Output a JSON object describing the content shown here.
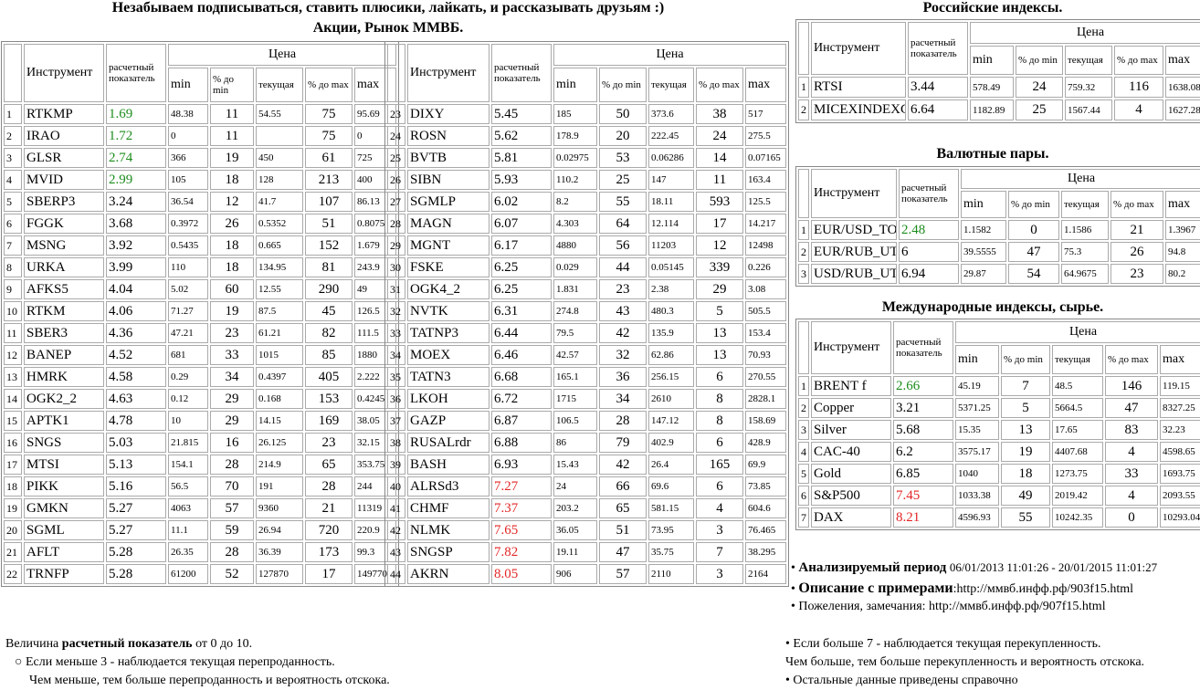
{
  "header": {
    "title": "Незабываем подписываться, ставить плюсики, лайкать, и рассказывать друзьям :)",
    "subtitle": "Акции, Рынок ММВБ."
  },
  "columns": {
    "instrument": "Инструмент",
    "calc": "расчетный показатель",
    "price": "Цена",
    "min": "min",
    "pmin": "% до min",
    "cur": "текущая",
    "pmax": "% до max",
    "max": "max"
  },
  "stocks_left": {
    "rows": [
      [
        "1",
        "RTKMP",
        1.69,
        48.38,
        11,
        54.55,
        75,
        95.69
      ],
      [
        "2",
        "IRAO",
        1.72,
        0,
        11,
        null,
        75,
        0
      ],
      [
        "3",
        "GLSR",
        2.74,
        366,
        19,
        450,
        61,
        725
      ],
      [
        "4",
        "MVID",
        2.99,
        105,
        18,
        128,
        213,
        400
      ],
      [
        "5",
        "SBERP3",
        3.24,
        36.54,
        12,
        41.7,
        107,
        86.13
      ],
      [
        "6",
        "FGGK",
        3.68,
        0.3972,
        26,
        0.5352,
        51,
        0.8075
      ],
      [
        "7",
        "MSNG",
        3.92,
        0.5435,
        18,
        0.665,
        152,
        1.679
      ],
      [
        "8",
        "URKA",
        3.99,
        110,
        18,
        134.95,
        81,
        243.9
      ],
      [
        "9",
        "AFKS5",
        4.04,
        5.02,
        60,
        12.55,
        290,
        49
      ],
      [
        "10",
        "RTKM",
        4.06,
        71.27,
        19,
        87.5,
        45,
        126.5
      ],
      [
        "11",
        "SBER3",
        4.36,
        47.21,
        23,
        61.21,
        82,
        111.5
      ],
      [
        "12",
        "BANEP",
        4.52,
        681,
        33,
        1015,
        85,
        1880
      ],
      [
        "13",
        "HMRK",
        4.58,
        0.29,
        34,
        0.4397,
        405,
        2.222
      ],
      [
        "14",
        "OGK2_2",
        4.63,
        0.12,
        29,
        0.168,
        153,
        0.4245
      ],
      [
        "15",
        "APTK1",
        4.78,
        10,
        29,
        14.15,
        169,
        38.05
      ],
      [
        "16",
        "SNGS",
        5.03,
        21.815,
        16,
        26.125,
        23,
        32.15
      ],
      [
        "17",
        "MTSI",
        5.13,
        154.1,
        28,
        214.9,
        65,
        353.75
      ],
      [
        "18",
        "PIKK",
        5.16,
        56.5,
        70,
        191,
        28,
        244
      ],
      [
        "19",
        "GMKN",
        5.27,
        4063,
        57,
        9360,
        21,
        11319
      ],
      [
        "20",
        "SGML",
        5.27,
        11.1,
        59,
        26.94,
        720,
        220.9
      ],
      [
        "21",
        "AFLT",
        5.28,
        26.35,
        28,
        36.39,
        173,
        99.3
      ],
      [
        "22",
        "TRNFP",
        5.28,
        61200,
        52,
        127870,
        17,
        149770
      ]
    ]
  },
  "stocks_right": {
    "rows": [
      [
        "23",
        "DIXY",
        5.45,
        185,
        50,
        373.6,
        38,
        517
      ],
      [
        "24",
        "ROSN",
        5.62,
        178.9,
        20,
        222.45,
        24,
        275.5
      ],
      [
        "25",
        "BVTB",
        5.81,
        0.02975,
        53,
        0.06286,
        14,
        0.07165
      ],
      [
        "26",
        "SIBN",
        5.93,
        110.2,
        25,
        147,
        11,
        163.4
      ],
      [
        "27",
        "SGMLP",
        6.02,
        8.2,
        55,
        18.11,
        593,
        125.5
      ],
      [
        "28",
        "MAGN",
        6.07,
        4.303,
        64,
        12.114,
        17,
        14.217
      ],
      [
        "29",
        "MGNT",
        6.17,
        4880,
        56,
        11203,
        12,
        12498
      ],
      [
        "30",
        "FSKE",
        6.25,
        0.029,
        44,
        0.05145,
        339,
        0.226
      ],
      [
        "31",
        "OGK4_2",
        6.25,
        1.831,
        23,
        2.38,
        29,
        3.08
      ],
      [
        "32",
        "NVTK",
        6.31,
        274.8,
        43,
        480.3,
        5,
        505.5
      ],
      [
        "33",
        "TATNP3",
        6.44,
        79.5,
        42,
        135.9,
        13,
        153.4
      ],
      [
        "34",
        "MOEX",
        6.46,
        42.57,
        32,
        62.86,
        13,
        70.93
      ],
      [
        "35",
        "TATN3",
        6.68,
        165.1,
        36,
        256.15,
        6,
        270.55
      ],
      [
        "36",
        "LKOH",
        6.72,
        1715,
        34,
        2610,
        8,
        2828.1
      ],
      [
        "37",
        "GAZP",
        6.87,
        106.5,
        28,
        147.12,
        8,
        158.69
      ],
      [
        "38",
        "RUSALrdr",
        6.88,
        86,
        79,
        402.9,
        6,
        428.9
      ],
      [
        "39",
        "BASH",
        6.93,
        15.43,
        42,
        26.4,
        165,
        69.9
      ],
      [
        "40",
        "ALRSd3",
        7.27,
        24,
        66,
        69.6,
        6,
        73.85
      ],
      [
        "41",
        "CHMF",
        7.37,
        203.2,
        65,
        581.15,
        4,
        604.6
      ],
      [
        "42",
        "NLMK",
        7.65,
        36.05,
        51,
        73.95,
        3,
        76.465
      ],
      [
        "43",
        "SNGSP",
        7.82,
        19.11,
        47,
        35.75,
        7,
        38.295
      ],
      [
        "44",
        "AKRN",
        8.05,
        906,
        57,
        2110,
        3,
        2164
      ]
    ]
  },
  "russian_indices": {
    "title": "Российские индексы.",
    "rows": [
      [
        "1",
        "RTSI",
        3.44,
        578.49,
        24,
        759.32,
        116,
        1638.08
      ],
      [
        "2",
        "MICEXINDEXCF",
        6.64,
        1182.89,
        25,
        1567.44,
        4,
        1627.28
      ]
    ]
  },
  "currency_pairs": {
    "title": "Валютные пары.",
    "rows": [
      [
        "1",
        "EUR/USD_TOD",
        2.48,
        1.1582,
        0,
        1.1586,
        21,
        1.3967
      ],
      [
        "2",
        "EUR/RUB_UTS",
        6,
        39.5555,
        47,
        75.3,
        26,
        94.8
      ],
      [
        "3",
        "USD/RUB_UTS",
        6.94,
        29.87,
        54,
        64.9675,
        23,
        80.2
      ]
    ]
  },
  "international": {
    "title": "Международные индексы, сырье.",
    "rows": [
      [
        "1",
        "BRENT f",
        2.66,
        45.19,
        7,
        48.5,
        146,
        119.15
      ],
      [
        "2",
        "Copper",
        3.21,
        5371.25,
        5,
        5664.5,
        47,
        8327.25
      ],
      [
        "3",
        "Silver",
        5.68,
        15.35,
        13,
        17.65,
        83,
        32.23
      ],
      [
        "4",
        "CAC-40",
        6.2,
        3575.17,
        19,
        4407.68,
        4,
        4598.65
      ],
      [
        "5",
        "Gold",
        6.85,
        1040,
        18,
        1273.75,
        33,
        1693.75
      ],
      [
        "6",
        "S&P500",
        7.45,
        1033.38,
        49,
        2019.42,
        4,
        2093.55
      ],
      [
        "7",
        "DAX",
        8.21,
        4596.93,
        55,
        10242.35,
        0,
        10293.04
      ]
    ]
  },
  "info": {
    "period_label": "Анализируемый период",
    "period": "06/01/2013 11:01:26 - 20/01/2015 11:01:27",
    "description_label": "Описание с примерами",
    "description_url": ":http://ммвб.инфф.рф/903f15.html",
    "feedback": "Пожеления, замечания: http://ммвб.инфф.рф/907f15.html"
  },
  "notes_left": {
    "intro_before": "Величина",
    "intro_bold": "расчетный показатель",
    "intro_after": "от 0 до 10.",
    "lines": [
      "Если меньше 3 - наблюдается текущая перепроданность.",
      "Чем меньше, тем больше перепроданность и вероятность отскока."
    ]
  },
  "notes_right": {
    "lines": [
      "Если больше 7 - наблюдается текущая перекупленность.",
      "Чем больше, тем больше перекупленность и вероятность отскока.",
      "Остальные данные приведены справочно"
    ]
  }
}
